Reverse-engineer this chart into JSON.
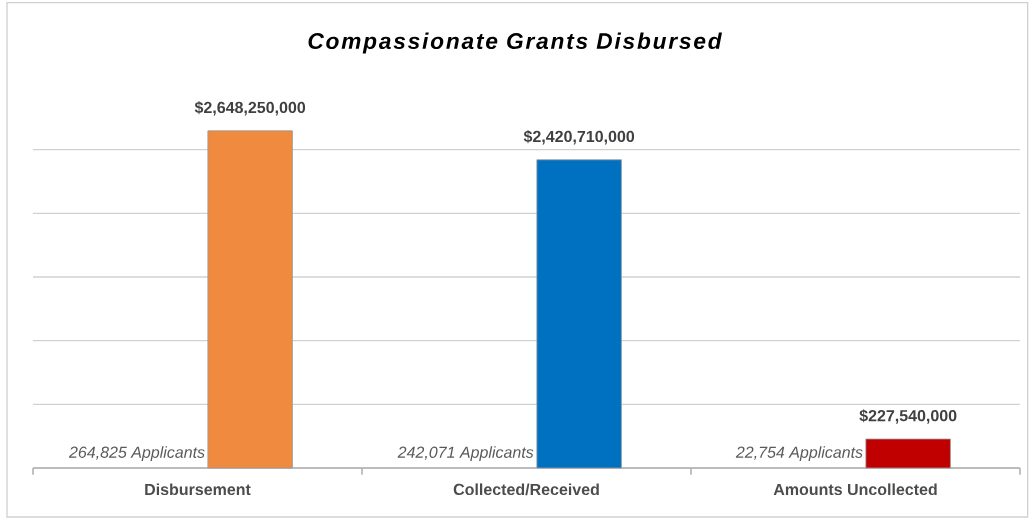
{
  "chart_data": {
    "type": "bar",
    "title": "Compassionate Grants Disbursed",
    "categories": [
      "Disbursement",
      "Collected/Received",
      "Amounts Uncollected"
    ],
    "values": [
      2648250000,
      2420710000,
      227540000
    ],
    "colors": [
      "#f08a3e",
      "#0070c0",
      "#c00000"
    ],
    "value_labels": [
      "$2,648,250,000",
      "$2,420,710,000",
      "$227,540,000"
    ],
    "annotations": [
      "264,825 Applicants",
      "242,071 Applicants",
      "22,754 Applicants"
    ],
    "grid": "y",
    "tick_labels": "x"
  }
}
